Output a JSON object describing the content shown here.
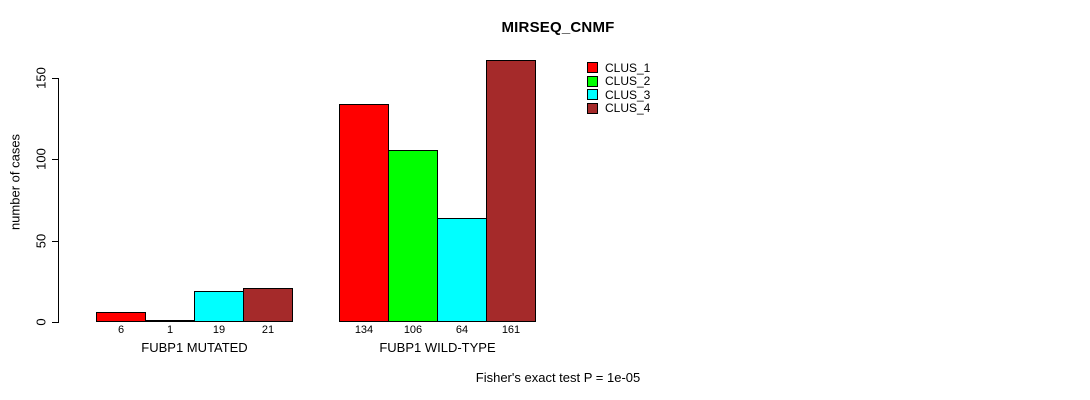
{
  "chart_data": {
    "type": "bar",
    "title": "MIRSEQ_CNMF",
    "xlabel": "",
    "ylabel": "number of cases",
    "ylim": [
      0,
      150
    ],
    "yticks": [
      0,
      50,
      100,
      150
    ],
    "grid": false,
    "legend_position": "top-right-inside",
    "categories": [
      "FUBP1 MUTATED",
      "FUBP1 WILD-TYPE"
    ],
    "series": [
      {
        "name": "CLUS_1",
        "color": "#FF0000",
        "values": [
          6,
          134
        ]
      },
      {
        "name": "CLUS_2",
        "color": "#00FF00",
        "values": [
          1,
          106
        ]
      },
      {
        "name": "CLUS_3",
        "color": "#00FFFF",
        "values": [
          19,
          64
        ]
      },
      {
        "name": "CLUS_4",
        "color": "#A52A2A",
        "values": [
          21,
          161
        ]
      }
    ],
    "bar_value_labels": [
      6,
      1,
      19,
      21,
      134,
      106,
      64,
      161
    ],
    "annotation": "Fisher's exact test P = 1e-05"
  }
}
